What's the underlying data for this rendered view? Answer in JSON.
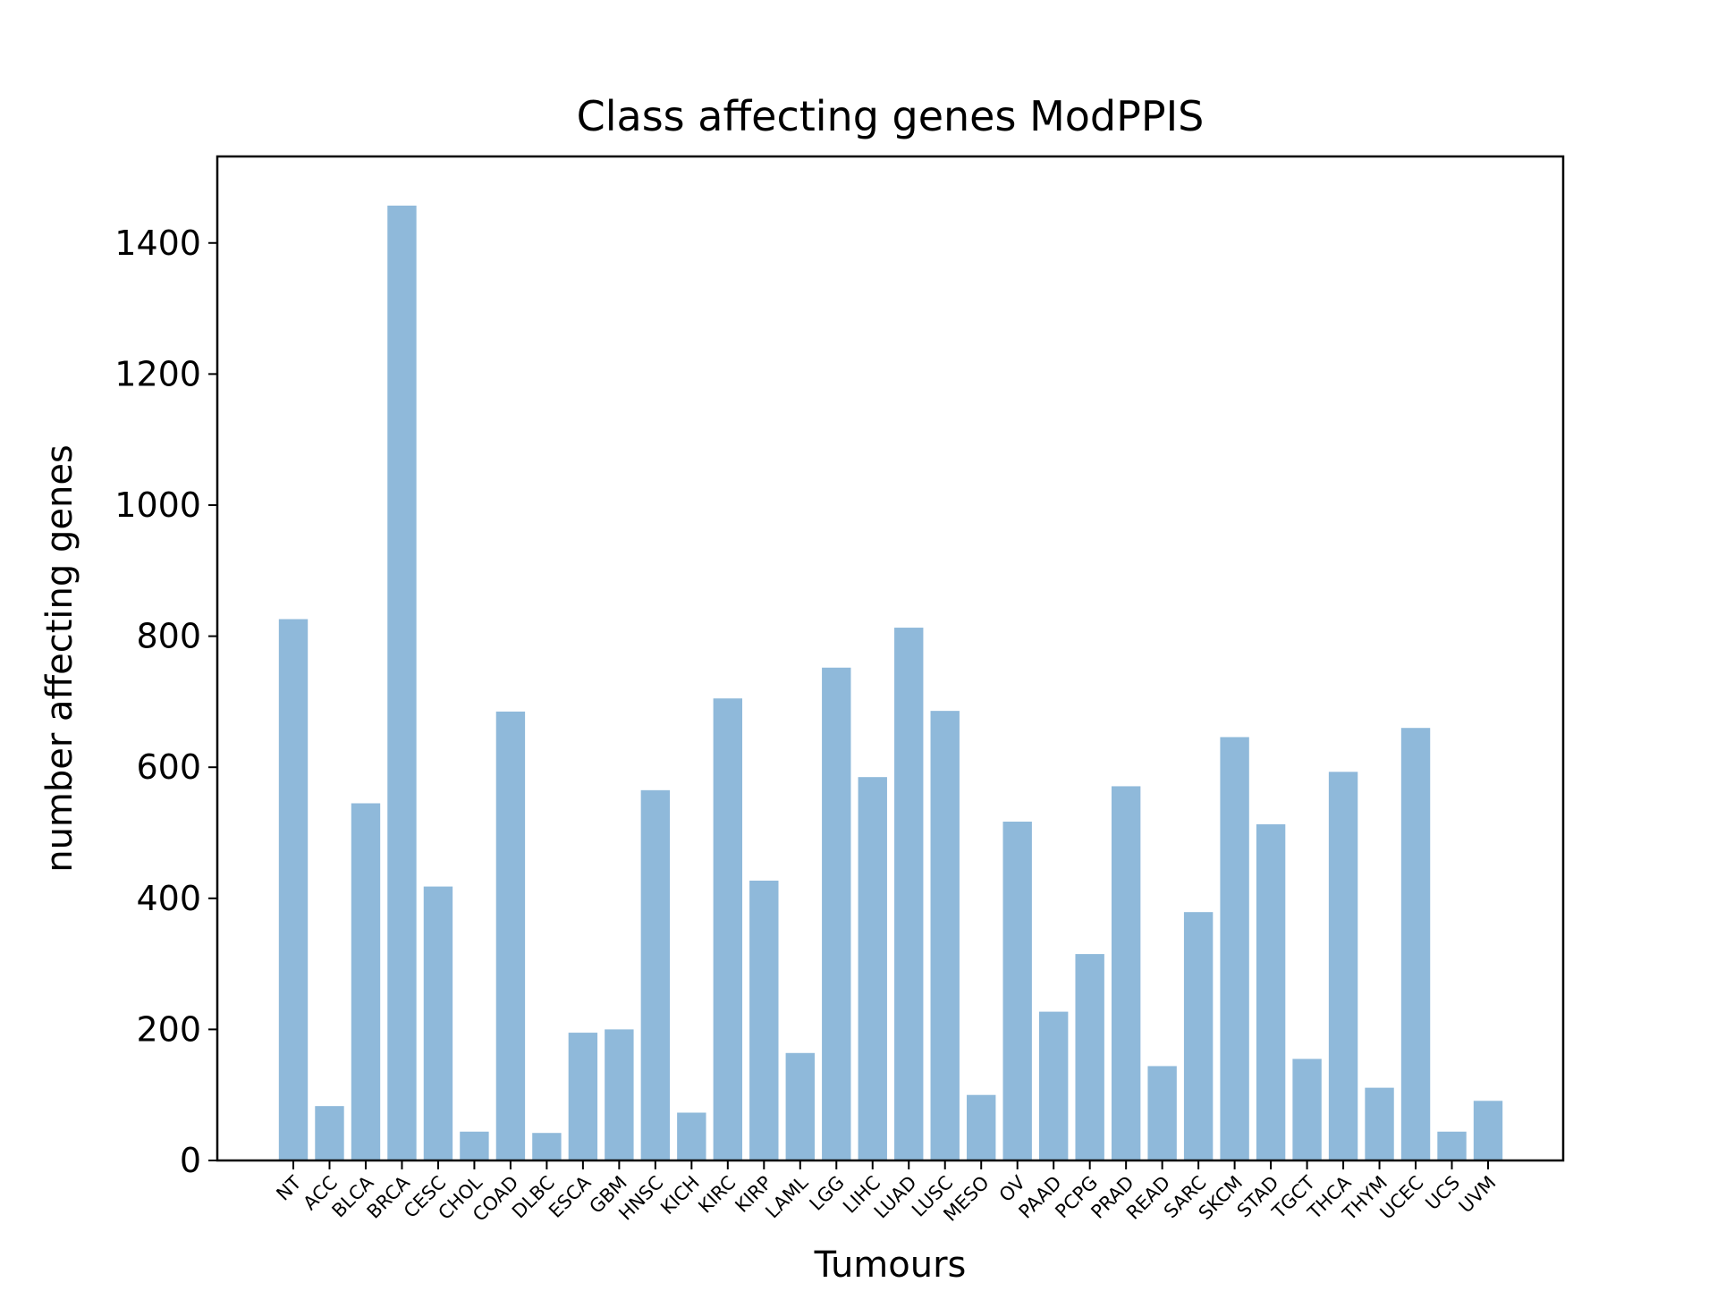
{
  "chart_data": {
    "type": "bar",
    "title": "Class affecting genes ModPPIS",
    "xlabel": "Tumours",
    "ylabel": "number affecting genes",
    "categories": [
      "NT",
      "ACC",
      "BLCA",
      "BRCA",
      "CESC",
      "CHOL",
      "COAD",
      "DLBC",
      "ESCA",
      "GBM",
      "HNSC",
      "KICH",
      "KIRC",
      "KIRP",
      "LAML",
      "LGG",
      "LIHC",
      "LUAD",
      "LUSC",
      "MESO",
      "OV",
      "PAAD",
      "PCPG",
      "PRAD",
      "READ",
      "SARC",
      "SKCM",
      "STAD",
      "TGCT",
      "THCA",
      "THYM",
      "UCEC",
      "UCS",
      "UVM"
    ],
    "values": [
      826,
      83,
      545,
      1457,
      418,
      44,
      685,
      42,
      195,
      200,
      565,
      73,
      705,
      427,
      164,
      752,
      585,
      813,
      686,
      100,
      517,
      227,
      315,
      571,
      144,
      379,
      646,
      513,
      155,
      593,
      111,
      660,
      44,
      91
    ],
    "ylim": [
      0,
      1532
    ],
    "yticks": [
      0,
      200,
      400,
      600,
      800,
      1000,
      1200,
      1400
    ],
    "bar_color": "#8fb9da",
    "grid": false,
    "legend": "none",
    "xtick_rotation_deg": -45
  }
}
